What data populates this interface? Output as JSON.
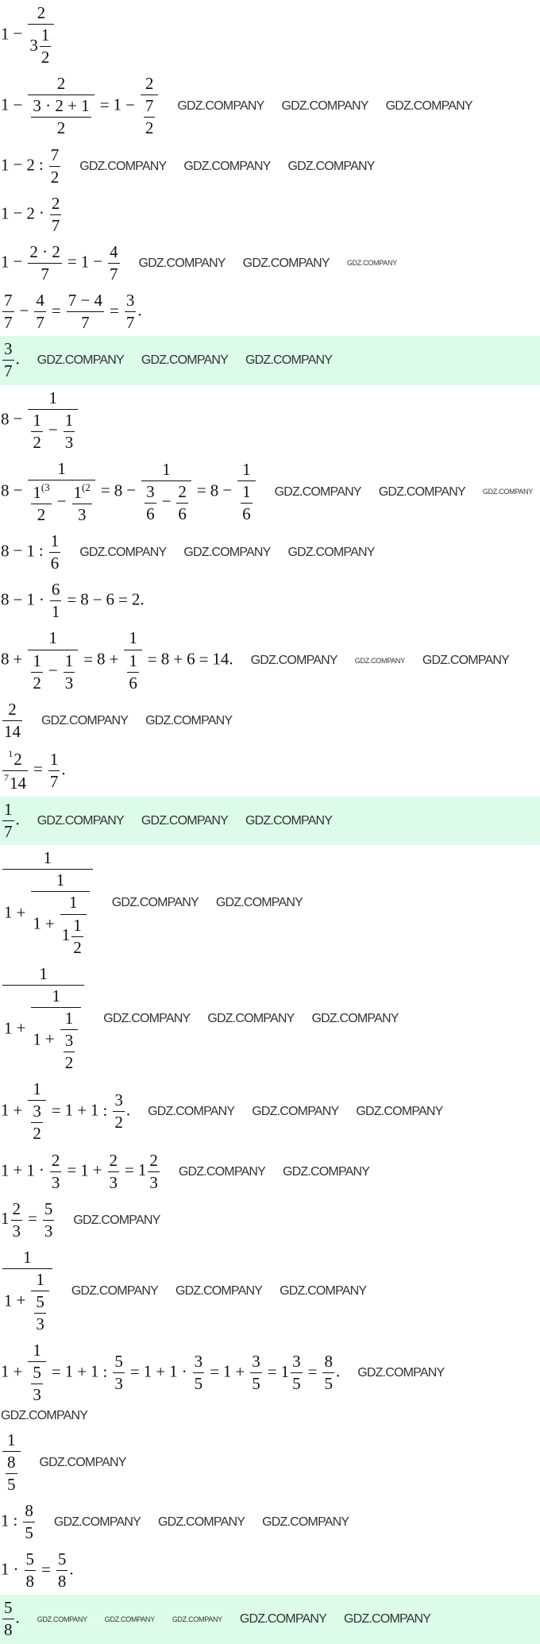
{
  "watermark": "GDZ.COMPANY",
  "colors": {
    "answer_band": "#dcfce9",
    "text": "#111111",
    "watermark": "#333333"
  },
  "lines": [
    {
      "answer": false,
      "t": [
        "1",
        " − ",
        {
          "f": [
            [
              "2"
            ],
            [
              {
                "m": [
                  "3",
                  "1",
                  "2"
                ]
              }
            ]
          ]
        }
      ]
    },
    {
      "answer": false,
      "t": [
        "1",
        " − ",
        {
          "f": [
            [
              "2"
            ],
            [
              {
                "f": [
                  [
                    "3 · 2 + 1"
                  ],
                  [
                    "2"
                  ]
                ]
              }
            ]
          ]
        },
        " = ",
        "1",
        " − ",
        {
          "f": [
            [
              "2"
            ],
            [
              {
                "f": [
                  [
                    "7"
                  ],
                  [
                    "2"
                  ]
                ]
              }
            ]
          ]
        }
      ]
    },
    {
      "answer": false,
      "t": [
        "1",
        " − ",
        "2",
        " : ",
        {
          "f": [
            [
              "7"
            ],
            [
              "2"
            ]
          ]
        }
      ]
    },
    {
      "answer": false,
      "t": [
        "1",
        " − ",
        "2",
        " · ",
        {
          "f": [
            [
              "2"
            ],
            [
              "7"
            ]
          ]
        }
      ]
    },
    {
      "answer": false,
      "t": [
        "1",
        " − ",
        {
          "f": [
            [
              "2 · 2"
            ],
            [
              "7"
            ]
          ]
        },
        " = ",
        "1",
        " − ",
        {
          "f": [
            [
              "4"
            ],
            [
              "7"
            ]
          ]
        }
      ]
    },
    {
      "answer": false,
      "t": [
        {
          "f": [
            [
              "7"
            ],
            [
              "7"
            ]
          ]
        },
        " − ",
        {
          "f": [
            [
              "4"
            ],
            [
              "7"
            ]
          ]
        },
        " = ",
        {
          "f": [
            [
              "7 − 4"
            ],
            [
              "7"
            ]
          ]
        },
        " = ",
        {
          "f": [
            [
              "3"
            ],
            [
              "7"
            ]
          ]
        },
        "."
      ]
    },
    {
      "answer": true,
      "t": [
        {
          "f": [
            [
              "3"
            ],
            [
              "7"
            ]
          ]
        },
        "."
      ]
    },
    {
      "answer": false,
      "t": [
        "8",
        " − ",
        {
          "f": [
            [
              "1"
            ],
            [
              {
                "f": [
                  [
                    "1"
                  ],
                  [
                    "2"
                  ]
                ]
              },
              " − ",
              {
                "f": [
                  [
                    "1"
                  ],
                  [
                    "3"
                  ]
                ]
              }
            ]
          ]
        }
      ]
    },
    {
      "answer": false,
      "t": [
        "8",
        " − ",
        {
          "f": [
            [
              "1"
            ],
            [
              {
                "f": [
                  [
                    {
                      "sup": [
                        "1",
                        "(3"
                      ]
                    }
                  ],
                  [
                    "2"
                  ]
                ]
              },
              " − ",
              {
                "f": [
                  [
                    {
                      "sup": [
                        "1",
                        "(2"
                      ]
                    }
                  ],
                  [
                    "3"
                  ]
                ]
              }
            ]
          ]
        },
        " = ",
        "8",
        " − ",
        {
          "f": [
            [
              "1"
            ],
            [
              {
                "f": [
                  [
                    "3"
                  ],
                  [
                    "6"
                  ]
                ]
              },
              " − ",
              {
                "f": [
                  [
                    "2"
                  ],
                  [
                    "6"
                  ]
                ]
              }
            ]
          ]
        },
        " = ",
        "8",
        " − ",
        {
          "f": [
            [
              "1"
            ],
            [
              {
                "f": [
                  [
                    "1"
                  ],
                  [
                    "6"
                  ]
                ]
              }
            ]
          ]
        }
      ]
    },
    {
      "answer": false,
      "t": [
        "8",
        " − ",
        "1",
        " : ",
        {
          "f": [
            [
              "1"
            ],
            [
              "6"
            ]
          ]
        }
      ]
    },
    {
      "answer": false,
      "t": [
        "8",
        " − ",
        "1",
        " · ",
        {
          "f": [
            [
              "6"
            ],
            [
              "1"
            ]
          ]
        },
        " = ",
        "8",
        " − ",
        "6",
        " = ",
        "2",
        "."
      ]
    },
    {
      "answer": false,
      "t": [
        "8",
        " + ",
        {
          "f": [
            [
              "1"
            ],
            [
              {
                "f": [
                  [
                    "1"
                  ],
                  [
                    "2"
                  ]
                ]
              },
              " − ",
              {
                "f": [
                  [
                    "1"
                  ],
                  [
                    "3"
                  ]
                ]
              }
            ]
          ]
        },
        " = ",
        "8",
        " + ",
        {
          "f": [
            [
              "1"
            ],
            [
              {
                "f": [
                  [
                    "1"
                  ],
                  [
                    "6"
                  ]
                ]
              }
            ]
          ]
        },
        " = ",
        "8",
        " + ",
        "6",
        " = ",
        "14",
        "."
      ]
    },
    {
      "answer": false,
      "t": [
        {
          "f": [
            [
              "2"
            ],
            [
              "14"
            ]
          ]
        }
      ]
    },
    {
      "answer": false,
      "t": [
        {
          "f": [
            [
              {
                "c": [
                  "2",
                  "1"
                ]
              }
            ],
            [
              {
                "c": [
                  "14",
                  "7"
                ]
              }
            ]
          ]
        },
        " = ",
        {
          "f": [
            [
              "1"
            ],
            [
              "7"
            ]
          ]
        },
        "."
      ]
    },
    {
      "answer": true,
      "t": [
        {
          "f": [
            [
              "1"
            ],
            [
              "7"
            ]
          ]
        },
        "."
      ]
    },
    {
      "answer": false,
      "t": [
        {
          "f": [
            [
              "1"
            ],
            [
              "1",
              " + ",
              {
                "f": [
                  [
                    "1"
                  ],
                  [
                    "1",
                    " + ",
                    {
                      "f": [
                        [
                          "1"
                        ],
                        [
                          {
                            "m": [
                              "1",
                              "1",
                              "2"
                            ]
                          }
                        ]
                      ]
                    }
                  ]
                ]
              }
            ]
          ]
        }
      ]
    },
    {
      "answer": false,
      "t": [
        {
          "f": [
            [
              "1"
            ],
            [
              "1",
              " + ",
              {
                "f": [
                  [
                    "1"
                  ],
                  [
                    "1",
                    " + ",
                    {
                      "f": [
                        [
                          "1"
                        ],
                        [
                          {
                            "f": [
                              [
                                "3"
                              ],
                              [
                                "2"
                              ]
                            ]
                          }
                        ]
                      ]
                    }
                  ]
                ]
              }
            ]
          ]
        }
      ]
    },
    {
      "answer": false,
      "t": [
        "1",
        " + ",
        {
          "f": [
            [
              "1"
            ],
            [
              {
                "f": [
                  [
                    "3"
                  ],
                  [
                    "2"
                  ]
                ]
              }
            ]
          ]
        },
        " = ",
        "1",
        " + ",
        "1",
        " : ",
        {
          "f": [
            [
              "3"
            ],
            [
              "2"
            ]
          ]
        },
        "."
      ]
    },
    {
      "answer": false,
      "t": [
        "1",
        " + ",
        "1",
        " · ",
        {
          "f": [
            [
              "2"
            ],
            [
              "3"
            ]
          ]
        },
        " = ",
        "1",
        " + ",
        {
          "f": [
            [
              "2"
            ],
            [
              "3"
            ]
          ]
        },
        " = ",
        {
          "m": [
            "1",
            "2",
            "3"
          ]
        }
      ]
    },
    {
      "answer": false,
      "t": [
        {
          "m": [
            "1",
            "2",
            "3"
          ]
        },
        " = ",
        {
          "f": [
            [
              "5"
            ],
            [
              "3"
            ]
          ]
        }
      ]
    },
    {
      "answer": false,
      "t": [
        {
          "f": [
            [
              "1"
            ],
            [
              "1",
              " + ",
              {
                "f": [
                  [
                    "1"
                  ],
                  [
                    {
                      "f": [
                        [
                          "5"
                        ],
                        [
                          "3"
                        ]
                      ]
                    }
                  ]
                ]
              }
            ]
          ]
        }
      ]
    },
    {
      "answer": false,
      "t": [
        "1",
        " + ",
        {
          "f": [
            [
              "1"
            ],
            [
              {
                "f": [
                  [
                    "5"
                  ],
                  [
                    "3"
                  ]
                ]
              }
            ]
          ]
        },
        " = ",
        "1",
        " + ",
        "1",
        " : ",
        {
          "f": [
            [
              "5"
            ],
            [
              "3"
            ]
          ]
        },
        " = ",
        "1",
        " + ",
        "1",
        " · ",
        {
          "f": [
            [
              "3"
            ],
            [
              "5"
            ]
          ]
        },
        " = ",
        "1",
        " + ",
        {
          "f": [
            [
              "3"
            ],
            [
              "5"
            ]
          ]
        },
        " = ",
        {
          "m": [
            "1",
            "3",
            "5"
          ]
        },
        " = ",
        {
          "f": [
            [
              "8"
            ],
            [
              "5"
            ]
          ]
        },
        "."
      ]
    },
    {
      "answer": false,
      "t": [
        {
          "f": [
            [
              "1"
            ],
            [
              {
                "f": [
                  [
                    "8"
                  ],
                  [
                    "5"
                  ]
                ]
              }
            ]
          ]
        }
      ]
    },
    {
      "answer": false,
      "t": [
        "1",
        " : ",
        {
          "f": [
            [
              "8"
            ],
            [
              "5"
            ]
          ]
        }
      ]
    },
    {
      "answer": false,
      "t": [
        "1",
        " · ",
        {
          "f": [
            [
              "5"
            ],
            [
              "8"
            ]
          ]
        },
        " = ",
        {
          "f": [
            [
              "5"
            ],
            [
              "8"
            ]
          ]
        },
        "."
      ]
    },
    {
      "answer": true,
      "t": [
        {
          "f": [
            [
              "5"
            ],
            [
              "8"
            ]
          ]
        },
        "."
      ]
    }
  ]
}
